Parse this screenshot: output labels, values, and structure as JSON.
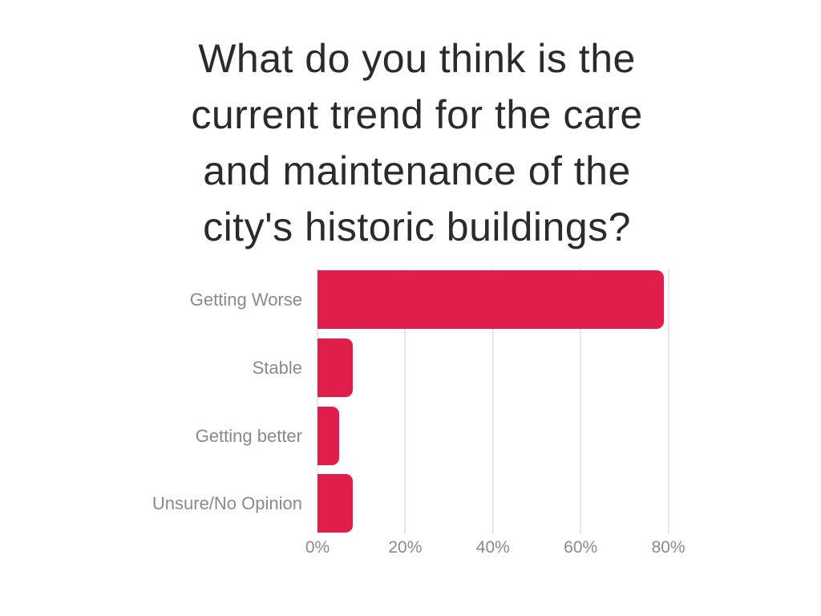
{
  "canvas": {
    "background": "#ffffff"
  },
  "chart_data": {
    "type": "bar",
    "orientation": "horizontal",
    "title": "What do you think is the current trend for the care and maintenance of the city's historic buildings?",
    "title_lines": [
      "What do you think is the",
      "current trend for the care",
      "and maintenance of the",
      "city's historic buildings?"
    ],
    "categories": [
      "Getting Worse",
      "Stable",
      "Getting better",
      "Unsure/No Opinion"
    ],
    "values": [
      79,
      8,
      5,
      8
    ],
    "unit": "%",
    "xlabel": "",
    "ylabel": "",
    "x_ticks": [
      {
        "label": "0%",
        "value": 0
      },
      {
        "label": "20%",
        "value": 20
      },
      {
        "label": "40%",
        "value": 40
      },
      {
        "label": "60%",
        "value": 60
      },
      {
        "label": "80%",
        "value": 80
      }
    ],
    "xlim": [
      0,
      87
    ],
    "grid": true,
    "legend": false,
    "colors": {
      "bar": "#e01e4b",
      "title": "#2b2b2b",
      "category_label": "#8a8a8a",
      "tick_label": "#8a8a8a",
      "gridline": "#e8e8e8",
      "background": "#ffffff"
    }
  }
}
